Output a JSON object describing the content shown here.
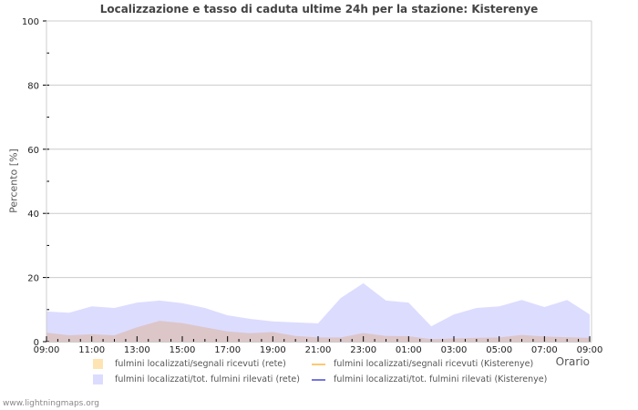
{
  "title": "Localizzazione e tasso di caduta ultime 24h per la stazione: Kisterenye",
  "footer": "www.lightningmaps.org",
  "colors": {
    "rete_ricevuti_fill": "#f5c89f",
    "rete_rilevati_fill": "#dcdcff",
    "overlap_fill": "#dcc6c8",
    "station_ricevuti_line": "#ffc870",
    "station_rilevati_line": "#7777dd",
    "grid": "#cccccc",
    "axis": "#cccccc"
  },
  "legend": [
    {
      "label": "fulmini localizzati/segnali ricevuti (rete)",
      "type": "area",
      "color": "#ffe4b3"
    },
    {
      "label": "fulmini localizzati/segnali ricevuti (Kisterenye)",
      "type": "line",
      "color": "#ffc870"
    },
    {
      "label": "fulmini localizzati/tot. fulmini rilevati (rete)",
      "type": "area",
      "color": "#dcdcff"
    },
    {
      "label": "fulmini localizzati/tot. fulmini rilevati (Kisterenye)",
      "type": "line",
      "color": "#7777dd"
    }
  ],
  "chart_data": {
    "type": "area",
    "title": "Localizzazione e tasso di caduta ultime 24h per la stazione: Kisterenye",
    "xlabel": "Orario",
    "ylabel": "Percento   [%]",
    "ylim": [
      0,
      100
    ],
    "yticks": [
      0,
      20,
      40,
      60,
      80,
      100
    ],
    "xtick_labels": [
      "09:00",
      "11:00",
      "13:00",
      "15:00",
      "17:00",
      "19:00",
      "21:00",
      "23:00",
      "01:00",
      "03:00",
      "05:00",
      "07:00",
      "09:00"
    ],
    "grid": true,
    "legend_position": "bottom",
    "x": [
      "09:00",
      "10:00",
      "11:00",
      "12:00",
      "13:00",
      "14:00",
      "15:00",
      "16:00",
      "17:00",
      "18:00",
      "19:00",
      "20:00",
      "21:00",
      "22:00",
      "23:00",
      "00:00",
      "01:00",
      "02:00",
      "03:00",
      "04:00",
      "05:00",
      "06:00",
      "07:00",
      "08:00",
      "09:00"
    ],
    "series": [
      {
        "name": "fulmini localizzati/tot. fulmini rilevati (rete)",
        "values": [
          9.4,
          9.0,
          11.0,
          10.5,
          12.2,
          12.8,
          12.0,
          10.5,
          8.2,
          7.1,
          6.3,
          6.0,
          5.7,
          13.6,
          18.2,
          12.8,
          12.2,
          4.8,
          8.5,
          10.5,
          11.0,
          13.0,
          10.8,
          13.0,
          8.5
        ]
      },
      {
        "name": "fulmini localizzati/segnali ricevuti (rete)",
        "values": [
          2.8,
          2.0,
          2.3,
          2.0,
          4.5,
          6.5,
          5.8,
          4.5,
          3.2,
          2.6,
          3.0,
          1.8,
          1.3,
          1.3,
          2.7,
          1.8,
          1.7,
          0.8,
          1.0,
          1.2,
          1.3,
          2.1,
          1.6,
          1.4,
          1.2
        ]
      },
      {
        "name": "fulmini localizzati/segnali ricevuti (Kisterenye)",
        "values": []
      },
      {
        "name": "fulmini localizzati/tot. fulmini rilevati (Kisterenye)",
        "values": []
      }
    ]
  }
}
